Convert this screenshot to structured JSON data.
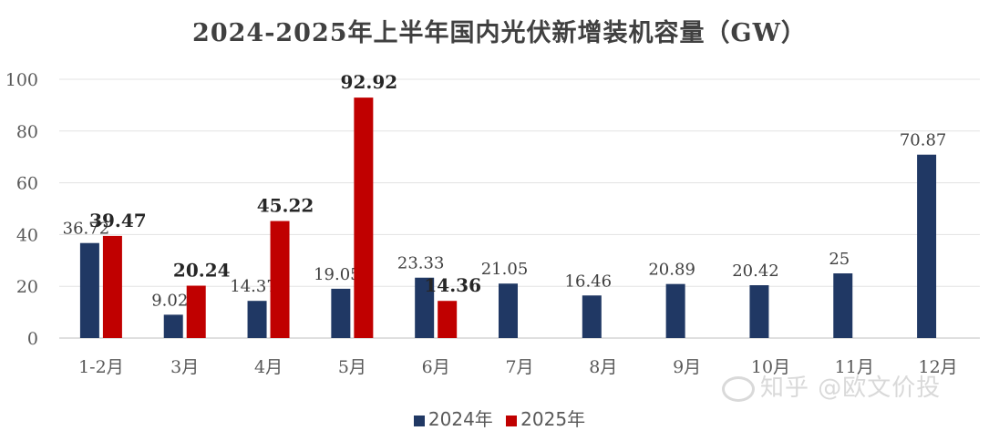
{
  "chart_data": {
    "type": "bar",
    "title": "2024-2025年上半年国内光伏新增装机容量（GW）",
    "categories": [
      "1-2月",
      "3月",
      "4月",
      "5月",
      "6月",
      "7月",
      "8月",
      "9月",
      "10月",
      "11月",
      "12月"
    ],
    "series": [
      {
        "name": "2024年",
        "color": "#203864",
        "values": [
          36.72,
          9.02,
          14.37,
          19.05,
          23.33,
          21.05,
          16.46,
          20.89,
          20.42,
          25,
          70.87
        ],
        "labels": [
          "36.72",
          "9.02",
          "14.37",
          "19.05",
          "23.33",
          "21.05",
          "16.46",
          "20.89",
          "20.42",
          "25",
          "70.87"
        ]
      },
      {
        "name": "2025年",
        "color": "#c00000",
        "values": [
          39.47,
          20.24,
          45.22,
          92.92,
          14.36,
          null,
          null,
          null,
          null,
          null,
          null
        ],
        "labels": [
          "39.47",
          "20.24",
          "45.22",
          "92.92",
          "14.36",
          "",
          "",
          "",
          "",
          "",
          ""
        ]
      }
    ],
    "yticks": [
      "0",
      "20",
      "40",
      "60",
      "80",
      "100"
    ],
    "ylim": [
      0,
      100
    ],
    "grid": true,
    "legend_position": "bottom"
  },
  "watermark": {
    "text": "知乎 @欧文价投",
    "icon": "wechat-icon"
  }
}
